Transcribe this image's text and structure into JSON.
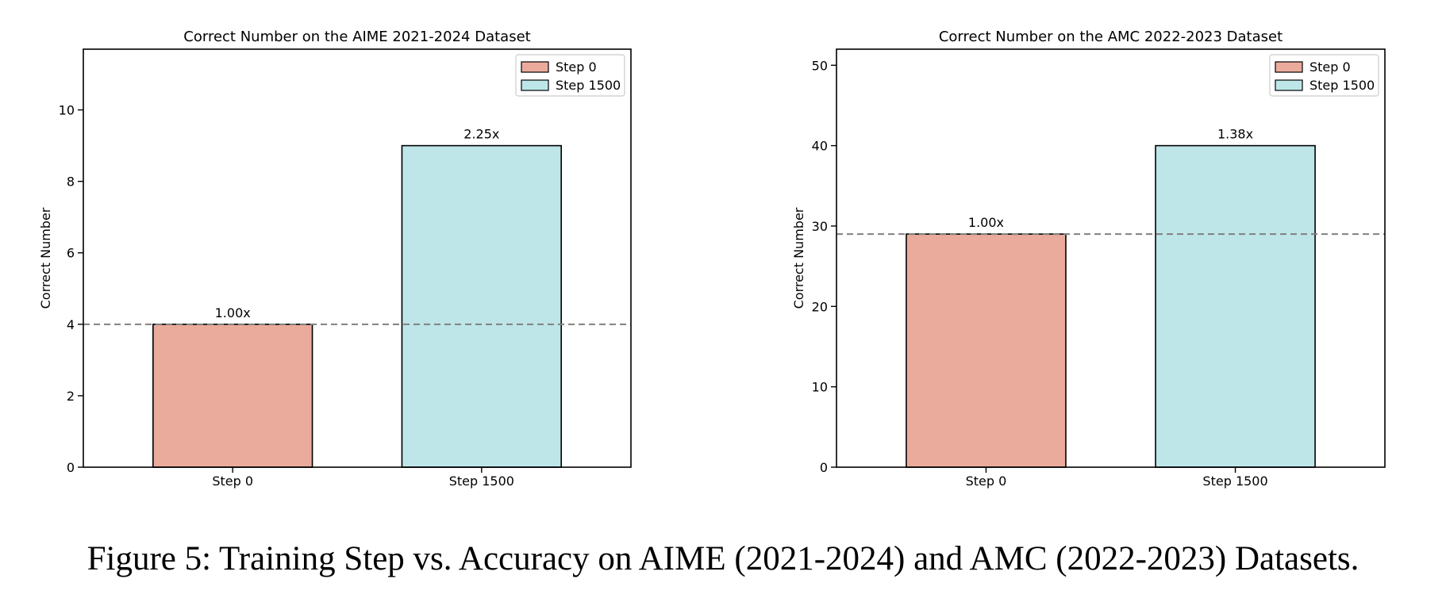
{
  "colors": {
    "step0": "#eaab9c",
    "step1500": "#bee6e8",
    "edge": "#000000",
    "refline": "#808080"
  },
  "chart_data": [
    {
      "type": "bar",
      "title": "Correct Number on the AIME 2021-2024 Dataset",
      "xlabel": "",
      "ylabel": "Correct Number",
      "categories": [
        "Step 0",
        "Step 1500"
      ],
      "values": [
        4,
        9
      ],
      "bar_labels": [
        "1.00x",
        "2.25x"
      ],
      "legend": [
        "Step 0",
        "Step 1500"
      ],
      "legend_position": "top-right",
      "reference_line": 4,
      "ylim": [
        0,
        11.7
      ],
      "yticks": [
        0,
        2,
        4,
        6,
        8,
        10
      ],
      "grid": false
    },
    {
      "type": "bar",
      "title": "Correct Number on the AMC 2022-2023 Dataset",
      "xlabel": "",
      "ylabel": "Correct Number",
      "categories": [
        "Step 0",
        "Step 1500"
      ],
      "values": [
        29,
        40
      ],
      "bar_labels": [
        "1.00x",
        "1.38x"
      ],
      "legend": [
        "Step 0",
        "Step 1500"
      ],
      "legend_position": "top-right",
      "reference_line": 29,
      "ylim": [
        0,
        52
      ],
      "yticks": [
        0,
        10,
        20,
        30,
        40,
        50
      ],
      "grid": false
    }
  ],
  "caption": "Figure 5: Training Step vs. Accuracy on AIME (2021-2024) and AMC (2022-2023) Datasets."
}
